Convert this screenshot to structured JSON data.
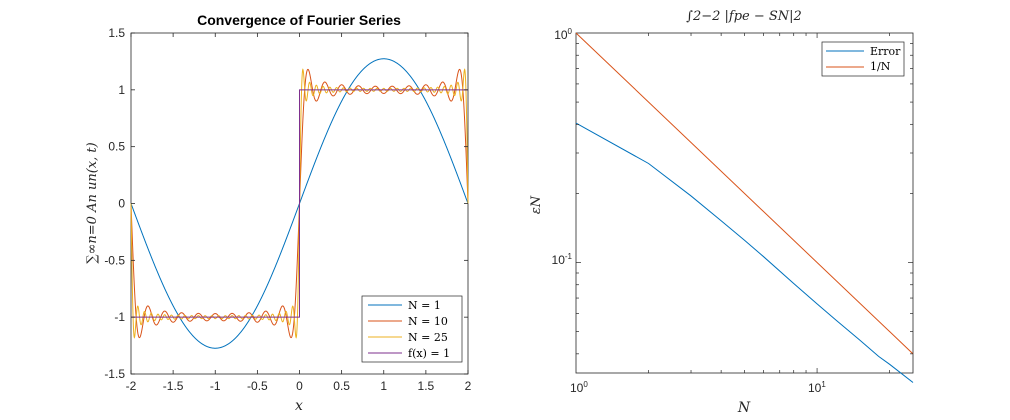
{
  "colors": {
    "blue": "#0072BD",
    "orange": "#D95319",
    "yellow": "#EDB120",
    "purple": "#7E2F8E",
    "axes": "#262626"
  },
  "chart_data": [
    {
      "type": "line",
      "title": "Convergence of Fourier Series",
      "xlabel": "x",
      "ylabel": "∑∞n=0 An un(x, t)",
      "xlim": [
        -2,
        2
      ],
      "ylim": [
        -1.5,
        1.5
      ],
      "xticks": [
        "-2",
        "-1.5",
        "-1",
        "-0.5",
        "0",
        "0.5",
        "1",
        "1.5",
        "2"
      ],
      "yticks": [
        "-1.5",
        "-1",
        "-0.5",
        "0",
        "0.5",
        "1",
        "1.5"
      ],
      "legend_position": "bottom-right",
      "grid": false,
      "series": [
        {
          "name": "N = 1",
          "N": 1,
          "color": "blue"
        },
        {
          "name": "N = 10",
          "N": 10,
          "color": "orange"
        },
        {
          "name": "N = 25",
          "N": 25,
          "color": "yellow"
        },
        {
          "name": "f(x) = 1",
          "color": "purple"
        }
      ]
    },
    {
      "type": "line",
      "title": "∫2−2 |fpe − SN|2",
      "xlabel": "N",
      "ylabel": "εN",
      "xscale": "log",
      "yscale": "log",
      "xlim": [
        1,
        25
      ],
      "ylim": [
        0.033,
        1
      ],
      "xticks": [
        "10",
        "10"
      ],
      "yticks": [
        "10",
        "10"
      ],
      "legend_position": "top-right",
      "grid": false,
      "series": [
        {
          "name": "Error",
          "color": "blue",
          "x": [
            1,
            2,
            3,
            4,
            5,
            6,
            8,
            10,
            12,
            15,
            18,
            20,
            25
          ],
          "y": [
            0.405,
            0.27,
            0.195,
            0.152,
            0.125,
            0.106,
            0.081,
            0.066,
            0.056,
            0.046,
            0.039,
            0.036,
            0.03
          ]
        },
        {
          "name": "1/N",
          "color": "orange",
          "x": [
            1,
            25
          ],
          "y": [
            1,
            0.04
          ]
        }
      ]
    }
  ]
}
